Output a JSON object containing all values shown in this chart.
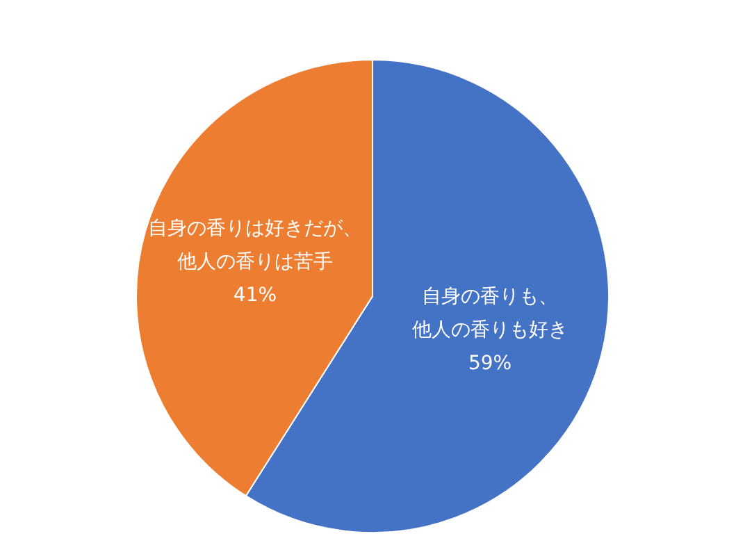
{
  "chart_data": {
    "type": "pie",
    "categories": [
      "自身の香りも、他人の香りも好き",
      "自身の香りは好きだが、他人の香りは苦手"
    ],
    "values": [
      59,
      41
    ],
    "colors": [
      "#4472c4",
      "#ed7d31"
    ],
    "value_labels": [
      "59%",
      "41%"
    ],
    "legend": false
  }
}
